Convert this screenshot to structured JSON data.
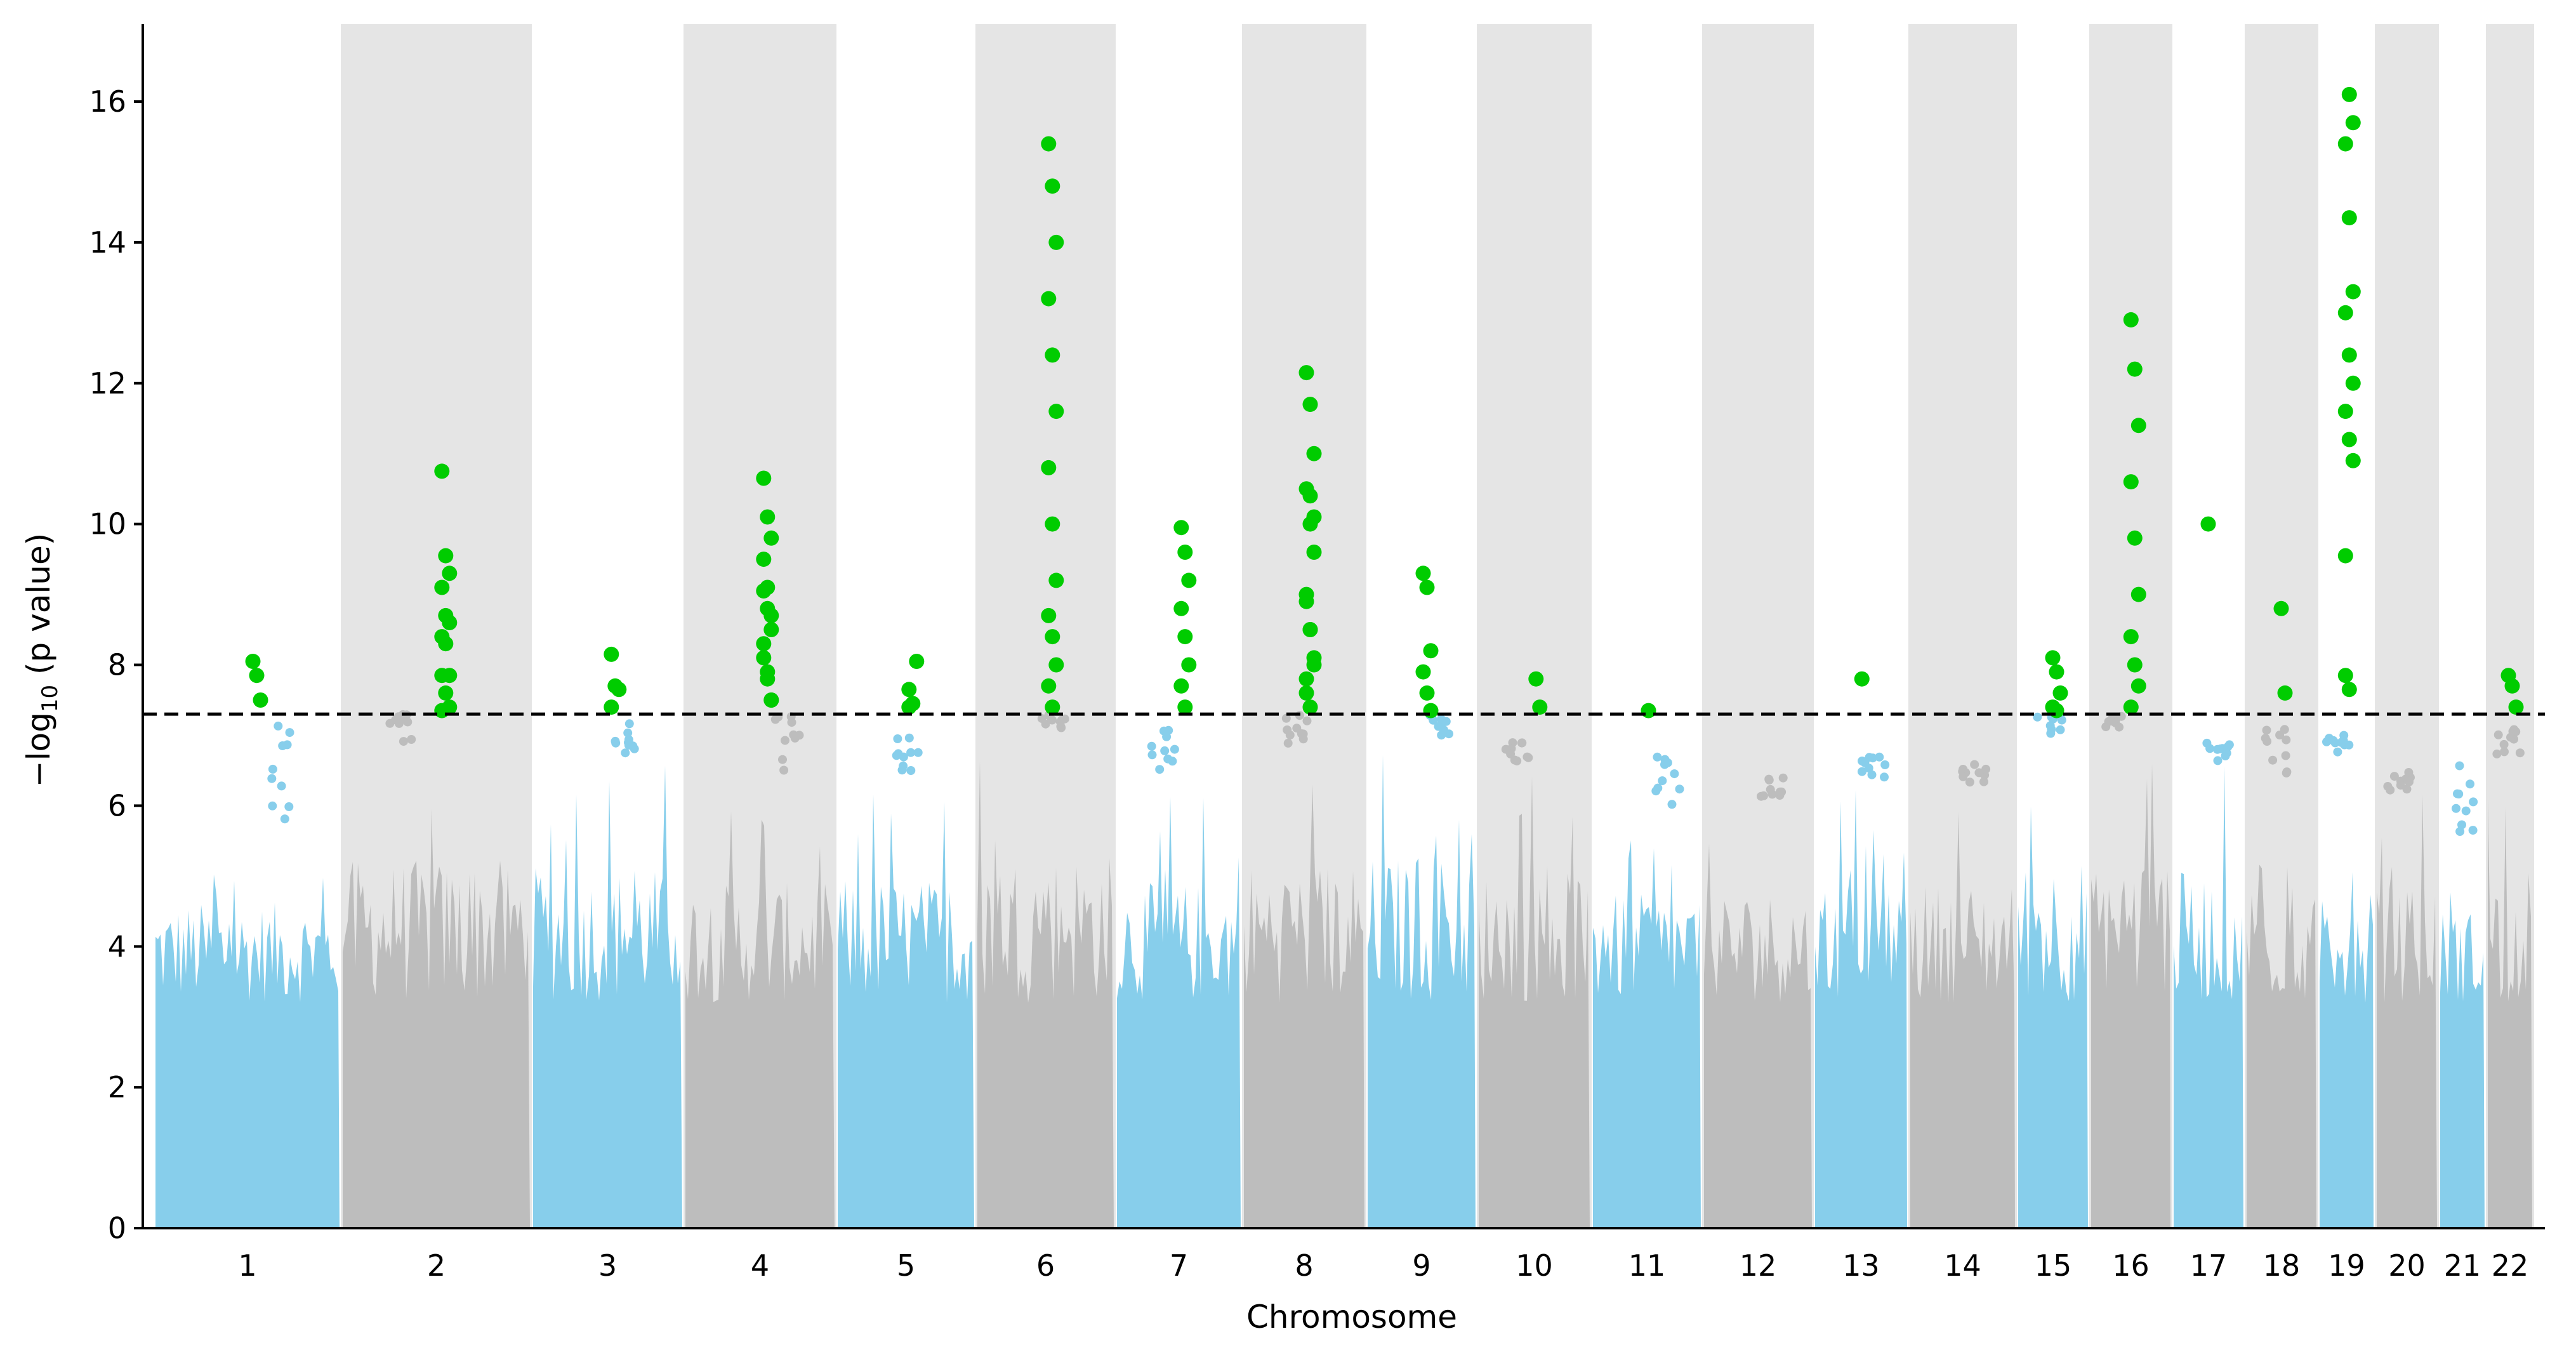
{
  "chart_data": {
    "type": "scatter",
    "xlabel": "Chromosome",
    "ylabel": "−log10 (p value)",
    "ylabel_parts": {
      "prefix": "−log",
      "subscript": "10",
      "suffix": " (p value)"
    },
    "ylim": [
      0,
      17.1
    ],
    "yticks": [
      0,
      2,
      4,
      6,
      8,
      10,
      12,
      14,
      16
    ],
    "significance_threshold": 7.3,
    "threshold_line_style": "dashed",
    "grid": false,
    "legend": "none",
    "colors": {
      "odd_chromosome": "#87ceeb",
      "even_chromosome": "#bdbdbd",
      "significant": "#00cc00",
      "band_shade": "#e5e5e5",
      "threshold_line": "#000000"
    },
    "background_bands": "even chromosomes shaded",
    "chromosomes": [
      {
        "label": "1",
        "bulk_max": 5.8,
        "max_nonsig": 7.3,
        "significant_hits": [
          8.05,
          7.85,
          7.5
        ]
      },
      {
        "label": "2",
        "bulk_max": 6.9,
        "max_nonsig": 7.3,
        "significant_hits": [
          10.75,
          9.55,
          9.3,
          9.1,
          8.7,
          8.6,
          8.4,
          8.3,
          7.85,
          7.85,
          7.6,
          7.4,
          7.35
        ]
      },
      {
        "label": "3",
        "bulk_max": 6.7,
        "max_nonsig": 7.2,
        "significant_hits": [
          8.15,
          7.7,
          7.65,
          7.4
        ]
      },
      {
        "label": "4",
        "bulk_max": 6.3,
        "max_nonsig": 7.3,
        "significant_hits": [
          9.05,
          8.8,
          8.5,
          8.1,
          7.8,
          7.5,
          10.65,
          10.1,
          9.8,
          9.5,
          9.1,
          8.7,
          8.3,
          7.9,
          7.5
        ]
      },
      {
        "label": "5",
        "bulk_max": 6.4,
        "max_nonsig": 7.0,
        "significant_hits": [
          7.65,
          7.45,
          8.05,
          7.4
        ]
      },
      {
        "label": "6",
        "bulk_max": 7.1,
        "max_nonsig": 7.3,
        "significant_hits": [
          15.4,
          14.8,
          14.0,
          13.2,
          12.4,
          11.6,
          10.8,
          10.0,
          9.2,
          8.7,
          8.4,
          8.0,
          7.7,
          7.4
        ]
      },
      {
        "label": "7",
        "bulk_max": 6.3,
        "max_nonsig": 7.2,
        "significant_hits": [
          9.95,
          9.6,
          9.2,
          8.8,
          8.4,
          8.0,
          7.7,
          7.4
        ]
      },
      {
        "label": "8",
        "bulk_max": 6.8,
        "max_nonsig": 7.3,
        "significant_hits": [
          12.15,
          11.7,
          11.0,
          10.5,
          10.0,
          9.6,
          9.0,
          8.5,
          8.0,
          7.6,
          10.4,
          10.1,
          8.9,
          8.5,
          8.1,
          7.8,
          7.4
        ]
      },
      {
        "label": "9",
        "bulk_max": 7.0,
        "max_nonsig": 7.3,
        "significant_hits": [
          9.3,
          9.1,
          8.2,
          7.9,
          7.6,
          7.35
        ]
      },
      {
        "label": "10",
        "bulk_max": 6.6,
        "max_nonsig": 6.9,
        "significant_hits": [
          7.8,
          7.4
        ]
      },
      {
        "label": "11",
        "bulk_max": 6.0,
        "max_nonsig": 6.8,
        "significant_hits": [
          7.35
        ]
      },
      {
        "label": "12",
        "bulk_max": 6.1,
        "max_nonsig": 6.4,
        "significant_hits": []
      },
      {
        "label": "13",
        "bulk_max": 6.4,
        "max_nonsig": 6.7,
        "significant_hits": [
          7.8
        ]
      },
      {
        "label": "14",
        "bulk_max": 6.3,
        "max_nonsig": 6.6,
        "significant_hits": []
      },
      {
        "label": "15",
        "bulk_max": 7.0,
        "max_nonsig": 7.3,
        "significant_hits": [
          8.1,
          7.9,
          7.6,
          7.4,
          7.35
        ]
      },
      {
        "label": "16",
        "bulk_max": 7.1,
        "max_nonsig": 7.3,
        "significant_hits": [
          12.9,
          12.2,
          11.4,
          10.6,
          9.8,
          9.0,
          8.4,
          8.0,
          7.7,
          7.4
        ]
      },
      {
        "label": "17",
        "bulk_max": 6.6,
        "max_nonsig": 6.9,
        "significant_hits": [
          10.0
        ]
      },
      {
        "label": "18",
        "bulk_max": 6.4,
        "max_nonsig": 7.1,
        "significant_hits": [
          8.8,
          7.6
        ]
      },
      {
        "label": "19",
        "bulk_max": 6.7,
        "max_nonsig": 7.0,
        "significant_hits": [
          7.85,
          16.1,
          15.7,
          15.4,
          14.35,
          13.3,
          13.0,
          12.4,
          12.0,
          11.6,
          11.2,
          10.9,
          9.55,
          7.65
        ]
      },
      {
        "label": "20",
        "bulk_max": 6.2,
        "max_nonsig": 6.5,
        "significant_hits": []
      },
      {
        "label": "21",
        "bulk_max": 5.6,
        "max_nonsig": 6.7,
        "significant_hits": []
      },
      {
        "label": "22",
        "bulk_max": 6.7,
        "max_nonsig": 7.1,
        "significant_hits": [
          7.85,
          7.7,
          7.4
        ]
      }
    ]
  }
}
